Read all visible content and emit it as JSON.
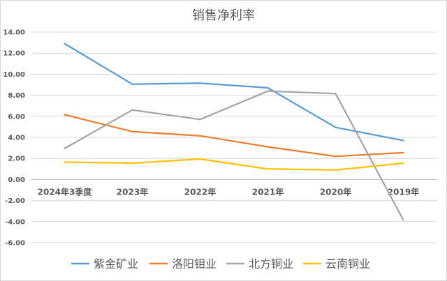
{
  "chart_data": {
    "type": "line",
    "title": "销售净利率",
    "categories": [
      "2024年3季度",
      "2023年",
      "2022年",
      "2021年",
      "2020年",
      "2019年"
    ],
    "yticks": [
      "14.00",
      "12.00",
      "10.00",
      "8.00",
      "6.00",
      "4.00",
      "2.00",
      "0.00",
      "-2.00",
      "-4.00",
      "-6.00"
    ],
    "ylim": [
      -6,
      14
    ],
    "grid": true,
    "legend_position": "bottom",
    "series": [
      {
        "name": "紫金矿业",
        "color": "#5B9BD5",
        "values": [
          12.9,
          9.05,
          9.15,
          8.7,
          4.95,
          3.7
        ]
      },
      {
        "name": "洛阳钼业",
        "color": "#ED7D31",
        "values": [
          6.15,
          4.55,
          4.15,
          3.1,
          2.2,
          2.55
        ]
      },
      {
        "name": "北方铜业",
        "color": "#A5A5A5",
        "values": [
          2.95,
          6.6,
          5.7,
          8.4,
          8.15,
          -3.85
        ]
      },
      {
        "name": "云南铜业",
        "color": "#FFC000",
        "values": [
          1.65,
          1.55,
          1.95,
          1.0,
          0.9,
          1.55
        ]
      }
    ]
  }
}
